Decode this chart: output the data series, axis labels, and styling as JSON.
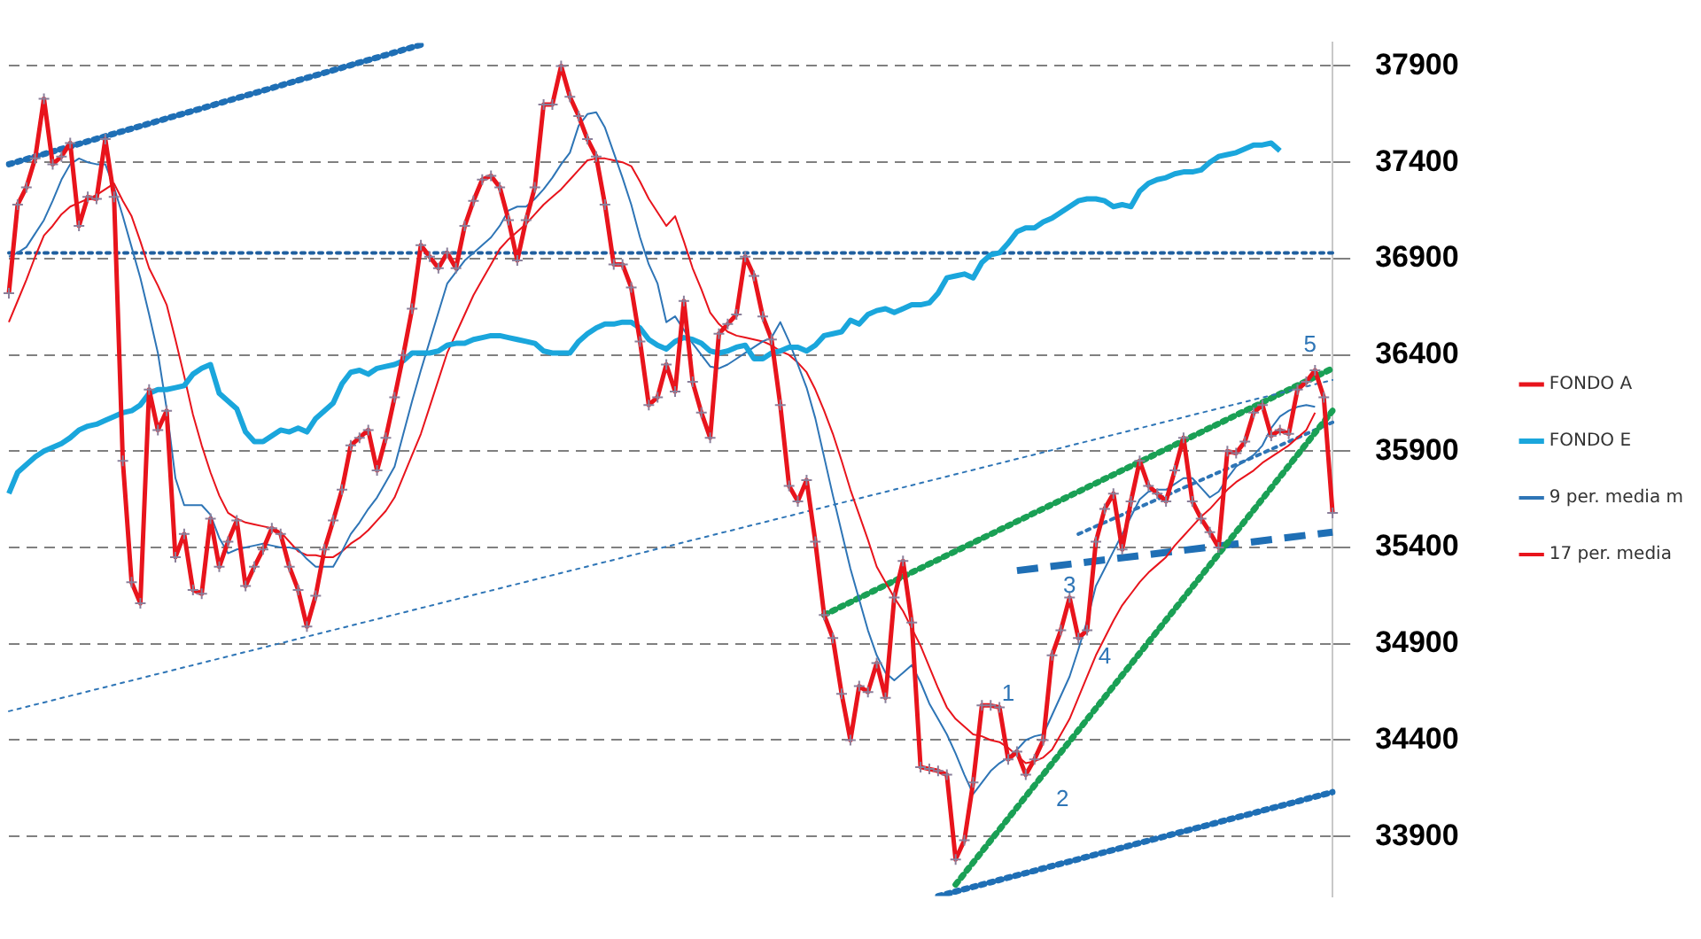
{
  "chart_data": {
    "type": "line",
    "categories": [
      null,
      null,
      null,
      null,
      null,
      null,
      null,
      null,
      null,
      null,
      null,
      null,
      null,
      null,
      null,
      null,
      null,
      null,
      null,
      null,
      null,
      null,
      null,
      null,
      null,
      null,
      null,
      null,
      null,
      null,
      null,
      null,
      null,
      null,
      null,
      null,
      null,
      null,
      null,
      null,
      null,
      null,
      null,
      null,
      null,
      null,
      null,
      null,
      null,
      null,
      null,
      null,
      null,
      null,
      null,
      null,
      null,
      null,
      null,
      null,
      null,
      null,
      null,
      null,
      null,
      null,
      null,
      null,
      null,
      null,
      null,
      null,
      null,
      null,
      null,
      null,
      null,
      null,
      null,
      null,
      null,
      null,
      null,
      null,
      null,
      null,
      null,
      null,
      null,
      null,
      null,
      null,
      null,
      null,
      null,
      null,
      null,
      null,
      null,
      null,
      null,
      null,
      null,
      null,
      null,
      null,
      null,
      null,
      null,
      null,
      null,
      null,
      null,
      null,
      null,
      null,
      null,
      null,
      null,
      null,
      null,
      null,
      null,
      null,
      null,
      null,
      null,
      null,
      null,
      null,
      null,
      null,
      null,
      null,
      null,
      null,
      null,
      null,
      null,
      null,
      null,
      null,
      null,
      null,
      null,
      null,
      null,
      null,
      null,
      null,
      null,
      null
    ],
    "ylim": [
      33590,
      38020
    ],
    "yticks": [
      33900,
      34400,
      34900,
      35400,
      35900,
      36400,
      36900,
      37400,
      37900
    ],
    "tick_labels": "y",
    "grid": "y",
    "legend": "right",
    "series": [
      {
        "name": "FONDO A",
        "color": "#e8141c",
        "marker": "cross",
        "values": [
          36720,
          37180,
          37270,
          37420,
          37730,
          37390,
          37430,
          37500,
          37070,
          37220,
          37210,
          37520,
          37220,
          35850,
          35220,
          35110,
          36220,
          36010,
          36110,
          35350,
          35470,
          35180,
          35160,
          35550,
          35300,
          35430,
          35540,
          35200,
          35300,
          35390,
          35500,
          35470,
          35300,
          35180,
          34990,
          35150,
          35390,
          35540,
          35700,
          35930,
          35970,
          36010,
          35800,
          35970,
          36180,
          36400,
          36640,
          36970,
          36910,
          36850,
          36930,
          36850,
          37070,
          37200,
          37310,
          37330,
          37270,
          37100,
          36890,
          37100,
          37270,
          37700,
          37700,
          37900,
          37740,
          37640,
          37520,
          37430,
          37180,
          36870,
          36870,
          36750,
          36470,
          36140,
          36180,
          36350,
          36210,
          36680,
          36260,
          36100,
          35970,
          36510,
          36560,
          36610,
          36910,
          36810,
          36600,
          36480,
          36140,
          35720,
          35640,
          35750,
          35430,
          35050,
          34930,
          34640,
          34400,
          34680,
          34650,
          34800,
          34620,
          35140,
          35330,
          35010,
          34260,
          34250,
          34240,
          34220,
          33780,
          33880,
          34180,
          34580,
          34580,
          34570,
          34300,
          34340,
          34220,
          34300,
          34400,
          34840,
          34970,
          35140,
          34930,
          34970,
          35430,
          35600,
          35680,
          35390,
          35640,
          35850,
          35720,
          35680,
          35640,
          35800,
          35970,
          35640,
          35550,
          35480,
          35400,
          35900,
          35890,
          35950,
          36100,
          36140,
          35980,
          36010,
          35990,
          36220,
          36260,
          36320,
          36180,
          35580
        ]
      },
      {
        "name": "FONDO E",
        "color": "#1aa6dc",
        "values": [
          35680,
          35790,
          35830,
          35870,
          35900,
          35920,
          35940,
          35970,
          36010,
          36030,
          36040,
          36060,
          36080,
          36100,
          36110,
          36140,
          36200,
          36220,
          36220,
          36230,
          36240,
          36300,
          36330,
          36350,
          36200,
          36160,
          36120,
          36000,
          35950,
          35950,
          35980,
          36010,
          36000,
          36020,
          36000,
          36070,
          36110,
          36150,
          36250,
          36310,
          36320,
          36300,
          36330,
          36340,
          36350,
          36370,
          36410,
          36410,
          36410,
          36420,
          36450,
          36460,
          36460,
          36480,
          36490,
          36500,
          36500,
          36490,
          36480,
          36470,
          36460,
          36420,
          36410,
          36410,
          36410,
          36470,
          36510,
          36540,
          36560,
          36560,
          36570,
          36570,
          36540,
          36480,
          36450,
          36430,
          36470,
          36490,
          36480,
          36460,
          36420,
          36410,
          36420,
          36440,
          36450,
          36380,
          36380,
          36410,
          36420,
          36440,
          36440,
          36420,
          36450,
          36500,
          36510,
          36520,
          36580,
          36560,
          36610,
          36630,
          36640,
          36620,
          36640,
          36660,
          36660,
          36670,
          36720,
          36800,
          36810,
          36820,
          36800,
          36880,
          36920,
          36930,
          36980,
          37040,
          37060,
          37060,
          37090,
          37110,
          37140,
          37170,
          37200,
          37210,
          37210,
          37200,
          37170,
          37180,
          37170,
          37250,
          37290,
          37310,
          37320,
          37340,
          37350,
          37350,
          37360,
          37400,
          37430,
          37440,
          37450,
          37470,
          37490,
          37490,
          37500,
          37460,
          null,
          null,
          null,
          null,
          null,
          null
        ]
      },
      {
        "name": "9 per. media m",
        "color": "#2e75b6",
        "values": [
          36910,
          36930,
          36960,
          37030,
          37100,
          37200,
          37310,
          37390,
          37420,
          37400,
          37390,
          37390,
          37270,
          37120,
          36960,
          36800,
          36610,
          36410,
          36120,
          35760,
          35620,
          35620,
          35620,
          35570,
          35450,
          35370,
          35390,
          35400,
          35410,
          35420,
          35410,
          35400,
          35400,
          35390,
          35340,
          35300,
          35300,
          35300,
          35380,
          35470,
          35530,
          35600,
          35660,
          35740,
          35820,
          35990,
          36160,
          36320,
          36470,
          36620,
          36770,
          36830,
          36890,
          36930,
          36970,
          37010,
          37070,
          37150,
          37170,
          37170,
          37210,
          37260,
          37320,
          37390,
          37450,
          37590,
          37650,
          37660,
          37580,
          37450,
          37320,
          37180,
          37010,
          36870,
          36770,
          36570,
          36600,
          36530,
          36460,
          36400,
          36340,
          36330,
          36350,
          36380,
          36410,
          36440,
          36470,
          36490,
          36570,
          36470,
          36350,
          36230,
          36070,
          35870,
          35670,
          35480,
          35290,
          35130,
          34970,
          34840,
          34750,
          34710,
          34750,
          34790,
          34700,
          34590,
          34510,
          34430,
          34330,
          34220,
          34120,
          34180,
          34240,
          34280,
          34310,
          34350,
          34400,
          34420,
          34430,
          34530,
          34630,
          34730,
          34870,
          35020,
          35200,
          35290,
          35380,
          35470,
          35560,
          35650,
          35690,
          35700,
          35700,
          35730,
          35760,
          35760,
          35710,
          35660,
          35690,
          35760,
          35820,
          35850,
          35880,
          35930,
          36020,
          36080,
          36110,
          36130,
          36140,
          36130,
          null,
          null
        ]
      },
      {
        "name": "17 per. media",
        "color": "#e8141c",
        "values": [
          36570,
          36680,
          36790,
          36910,
          37020,
          37070,
          37130,
          37170,
          37190,
          37210,
          37230,
          37260,
          37290,
          37200,
          37120,
          36990,
          36850,
          36760,
          36660,
          36480,
          36290,
          36090,
          35930,
          35790,
          35670,
          35580,
          35550,
          35530,
          35520,
          35510,
          35500,
          35480,
          35430,
          35380,
          35360,
          35360,
          35350,
          35350,
          35380,
          35420,
          35450,
          35490,
          35540,
          35590,
          35660,
          35770,
          35880,
          35990,
          36130,
          36270,
          36410,
          36510,
          36610,
          36710,
          36790,
          36870,
          36950,
          37000,
          37040,
          37080,
          37130,
          37180,
          37220,
          37260,
          37310,
          37360,
          37410,
          37420,
          37420,
          37410,
          37400,
          37380,
          37300,
          37210,
          37140,
          37070,
          37120,
          36990,
          36850,
          36740,
          36620,
          36560,
          36520,
          36500,
          36490,
          36480,
          36470,
          36450,
          36420,
          36400,
          36360,
          36310,
          36220,
          36110,
          35990,
          35850,
          35700,
          35570,
          35440,
          35300,
          35220,
          35140,
          35070,
          34980,
          34890,
          34780,
          34670,
          34570,
          34510,
          34470,
          34430,
          34420,
          34400,
          34390,
          34360,
          34320,
          34280,
          34290,
          34310,
          34350,
          34430,
          34510,
          34620,
          34730,
          34840,
          34930,
          35020,
          35100,
          35160,
          35220,
          35270,
          35310,
          35350,
          35410,
          35460,
          35510,
          35560,
          35600,
          35650,
          35700,
          35740,
          35770,
          35800,
          35840,
          35870,
          35900,
          35930,
          35970,
          36010,
          36100,
          null,
          null
        ]
      },
      {
        "color": "#1f6fb5",
        "line_style": "dotted",
        "values": [
          37390,
          null,
          null,
          null,
          null,
          null,
          null,
          null,
          null,
          null,
          null,
          null,
          null,
          null,
          null,
          null,
          null,
          null,
          null,
          null,
          null,
          null,
          null,
          null,
          null,
          null,
          null,
          null,
          null,
          null,
          null,
          null,
          null,
          null,
          null,
          null,
          null,
          null,
          null,
          null,
          null,
          null,
          null,
          null,
          null,
          null,
          null,
          38010,
          null,
          null,
          null,
          null,
          null,
          null,
          null,
          null,
          null,
          null,
          null,
          null,
          null,
          null,
          null,
          null,
          null,
          null,
          null,
          null,
          null,
          null,
          null,
          null,
          null,
          null,
          null,
          null,
          null,
          null,
          null,
          null,
          null,
          null,
          null,
          null,
          null,
          null,
          null,
          null,
          null,
          null,
          null,
          null,
          null,
          null,
          null,
          null,
          null,
          null,
          null,
          null,
          null,
          null,
          null,
          null,
          null,
          null,
          null,
          null,
          null,
          null,
          null,
          null,
          null,
          null,
          null,
          null,
          null,
          null,
          null,
          null,
          null,
          null,
          null,
          null,
          null,
          null,
          null,
          null,
          null,
          null,
          null,
          null,
          null,
          null,
          null,
          null,
          null,
          null,
          null,
          null,
          null,
          null,
          null,
          null,
          null,
          null,
          null,
          null,
          null,
          null,
          null,
          null
        ]
      },
      {
        "color": "#2e75b6",
        "line_style": "dotted",
        "values": [
          34550,
          null,
          null,
          null,
          null,
          null,
          null,
          null,
          null,
          null,
          null,
          null,
          null,
          null,
          null,
          null,
          null,
          null,
          null,
          null,
          null,
          null,
          null,
          null,
          null,
          null,
          null,
          null,
          null,
          null,
          null,
          null,
          null,
          null,
          null,
          null,
          null,
          null,
          null,
          null,
          null,
          null,
          null,
          null,
          null,
          null,
          null,
          null,
          null,
          null,
          null,
          null,
          null,
          null,
          null,
          null,
          null,
          null,
          null,
          null,
          null,
          null,
          null,
          null,
          null,
          null,
          null,
          null,
          null,
          null,
          null,
          null,
          null,
          null,
          null,
          null,
          null,
          null,
          null,
          null,
          null,
          null,
          null,
          null,
          null,
          null,
          null,
          null,
          null,
          null,
          null,
          null,
          null,
          null,
          null,
          null,
          null,
          null,
          null,
          null,
          null,
          null,
          null,
          null,
          null,
          null,
          null,
          null,
          null,
          null,
          null,
          null,
          null,
          null,
          null,
          null,
          null,
          null,
          null,
          null,
          null,
          null,
          null,
          null,
          null,
          null,
          null,
          null,
          null,
          null,
          null,
          null,
          null,
          null,
          null,
          null,
          null,
          null,
          null,
          null,
          null,
          null,
          null,
          null,
          null,
          null,
          null,
          null,
          null,
          null,
          null,
          36270
        ]
      },
      {
        "color": "#1aa055",
        "line_style": "dotted",
        "values": [
          null,
          null,
          null,
          null,
          null,
          null,
          null,
          null,
          null,
          null,
          null,
          null,
          null,
          null,
          null,
          null,
          null,
          null,
          null,
          null,
          null,
          null,
          null,
          null,
          null,
          null,
          null,
          null,
          null,
          null,
          null,
          null,
          null,
          null,
          null,
          null,
          null,
          null,
          null,
          null,
          null,
          null,
          null,
          null,
          null,
          null,
          null,
          null,
          null,
          null,
          null,
          null,
          null,
          null,
          null,
          null,
          null,
          null,
          null,
          null,
          null,
          null,
          null,
          null,
          null,
          null,
          null,
          null,
          null,
          null,
          null,
          null,
          null,
          null,
          null,
          null,
          null,
          null,
          null,
          null,
          null,
          null,
          null,
          null,
          null,
          null,
          null,
          null,
          null,
          null,
          null,
          null,
          null,
          35050,
          null,
          null,
          null,
          null,
          null,
          null,
          null,
          null,
          null,
          null,
          null,
          null,
          null,
          null,
          null,
          null,
          null,
          null,
          null,
          null,
          null,
          null,
          null,
          null,
          null,
          null,
          null,
          null,
          null,
          null,
          null,
          null,
          null,
          null,
          null,
          null,
          null,
          null,
          null,
          null,
          null,
          null,
          null,
          null,
          null,
          null,
          null,
          null,
          null,
          null,
          null,
          null,
          null,
          null,
          null,
          null,
          null,
          36330
        ]
      },
      {
        "color": "#1aa055",
        "line_style": "dotted",
        "values": [
          null,
          null,
          null,
          null,
          null,
          null,
          null,
          null,
          null,
          null,
          null,
          null,
          null,
          null,
          null,
          null,
          null,
          null,
          null,
          null,
          null,
          null,
          null,
          null,
          null,
          null,
          null,
          null,
          null,
          null,
          null,
          null,
          null,
          null,
          null,
          null,
          null,
          null,
          null,
          null,
          null,
          null,
          null,
          null,
          null,
          null,
          null,
          null,
          null,
          null,
          null,
          null,
          null,
          null,
          null,
          null,
          null,
          null,
          null,
          null,
          null,
          null,
          null,
          null,
          null,
          null,
          null,
          null,
          null,
          null,
          null,
          null,
          null,
          null,
          null,
          null,
          null,
          null,
          null,
          null,
          null,
          null,
          null,
          null,
          null,
          null,
          null,
          null,
          null,
          null,
          null,
          null,
          null,
          null,
          null,
          null,
          null,
          null,
          null,
          null,
          null,
          null,
          null,
          null,
          null,
          null,
          null,
          null,
          33650,
          null,
          null,
          null,
          null,
          null,
          null,
          null,
          null,
          null,
          null,
          null,
          null,
          null,
          null,
          null,
          null,
          null,
          null,
          null,
          null,
          null,
          null,
          null,
          null,
          null,
          null,
          null,
          null,
          null,
          null,
          null,
          null,
          null,
          null,
          null,
          null,
          null,
          null,
          null,
          null,
          null,
          null,
          36110
        ]
      },
      {
        "color": "#1f6fb5",
        "line_style": "dashed",
        "values": [
          null,
          null,
          null,
          null,
          null,
          null,
          null,
          null,
          null,
          null,
          null,
          null,
          null,
          null,
          null,
          null,
          null,
          null,
          null,
          null,
          null,
          null,
          null,
          null,
          null,
          null,
          null,
          null,
          null,
          null,
          null,
          null,
          null,
          null,
          null,
          null,
          null,
          null,
          null,
          null,
          null,
          null,
          null,
          null,
          null,
          null,
          null,
          null,
          null,
          null,
          null,
          null,
          null,
          null,
          null,
          null,
          null,
          null,
          null,
          null,
          null,
          null,
          null,
          null,
          null,
          null,
          null,
          null,
          null,
          null,
          null,
          null,
          null,
          null,
          null,
          null,
          null,
          null,
          null,
          null,
          null,
          null,
          null,
          null,
          null,
          null,
          null,
          null,
          null,
          null,
          null,
          null,
          null,
          null,
          null,
          null,
          null,
          null,
          null,
          null,
          null,
          null,
          null,
          null,
          null,
          null,
          null,
          null,
          null,
          null,
          null,
          null,
          null,
          null,
          null,
          35280,
          null,
          null,
          null,
          null,
          null,
          null,
          null,
          null,
          null,
          null,
          null,
          null,
          null,
          null,
          null,
          null,
          null,
          null,
          null,
          null,
          null,
          null,
          null,
          null,
          null,
          null,
          null,
          null,
          null,
          null,
          null,
          null,
          null,
          null,
          null,
          35480
        ]
      },
      {
        "color": "#2e75b6",
        "line_style": "dotted",
        "values": [
          null,
          null,
          null,
          null,
          null,
          null,
          null,
          null,
          null,
          null,
          null,
          null,
          null,
          null,
          null,
          null,
          null,
          null,
          null,
          null,
          null,
          null,
          null,
          null,
          null,
          null,
          null,
          null,
          null,
          null,
          null,
          null,
          null,
          null,
          null,
          null,
          null,
          null,
          null,
          null,
          null,
          null,
          null,
          null,
          null,
          null,
          null,
          null,
          null,
          null,
          null,
          null,
          null,
          null,
          null,
          null,
          null,
          null,
          null,
          null,
          null,
          null,
          null,
          null,
          null,
          null,
          null,
          null,
          null,
          null,
          null,
          null,
          null,
          null,
          null,
          null,
          null,
          null,
          null,
          null,
          null,
          null,
          null,
          null,
          null,
          null,
          null,
          null,
          null,
          null,
          null,
          null,
          null,
          null,
          null,
          null,
          null,
          null,
          null,
          null,
          null,
          null,
          null,
          null,
          null,
          null,
          null,
          null,
          null,
          null,
          null,
          null,
          null,
          null,
          null,
          null,
          null,
          null,
          null,
          null,
          null,
          null,
          35470,
          null,
          null,
          null,
          null,
          null,
          null,
          null,
          null,
          null,
          null,
          null,
          null,
          null,
          null,
          null,
          null,
          null,
          null,
          null,
          null,
          null,
          null,
          null,
          null,
          null,
          null,
          null,
          null,
          36050
        ]
      },
      {
        "color": "#1f6fb5",
        "line_style": "dotted",
        "values": [
          null,
          null,
          null,
          null,
          null,
          null,
          null,
          null,
          null,
          null,
          null,
          null,
          null,
          null,
          null,
          null,
          null,
          null,
          null,
          null,
          null,
          null,
          null,
          null,
          null,
          null,
          null,
          null,
          null,
          null,
          null,
          null,
          null,
          null,
          null,
          null,
          null,
          null,
          null,
          null,
          null,
          null,
          null,
          null,
          null,
          null,
          null,
          null,
          null,
          null,
          null,
          null,
          null,
          null,
          null,
          null,
          null,
          null,
          null,
          null,
          null,
          null,
          null,
          null,
          null,
          null,
          null,
          null,
          null,
          null,
          null,
          null,
          null,
          null,
          null,
          null,
          null,
          null,
          null,
          null,
          null,
          null,
          null,
          null,
          null,
          null,
          null,
          null,
          null,
          null,
          null,
          null,
          null,
          null,
          null,
          null,
          null,
          null,
          null,
          null,
          null,
          null,
          null,
          null,
          null,
          null,
          33590,
          null,
          null,
          null,
          null,
          null,
          null,
          null,
          null,
          null,
          null,
          null,
          null,
          null,
          null,
          null,
          null,
          null,
          null,
          null,
          null,
          null,
          null,
          null,
          null,
          null,
          null,
          null,
          null,
          null,
          null,
          null,
          null,
          null,
          null,
          null,
          null,
          null,
          null,
          null,
          null,
          null,
          null,
          null,
          null,
          34130
        ]
      }
    ],
    "ref_lines": [
      {
        "axis": "y",
        "value": 36930,
        "color": "#1f5f9f",
        "line_style": "dotted"
      }
    ],
    "annotations": [
      "1",
      "2",
      {
        "text": "3",
        "y": 35200
      },
      {
        "text": "4",
        "y": 34830
      },
      "5"
    ]
  }
}
